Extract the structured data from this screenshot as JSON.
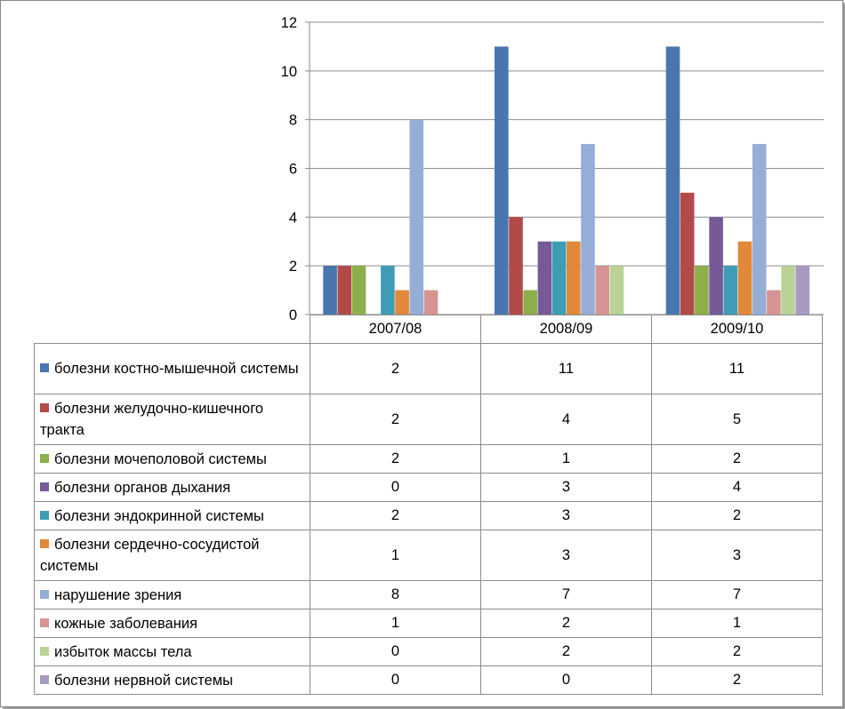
{
  "chart_data": {
    "type": "bar",
    "categories": [
      "2007/08",
      "2008/09",
      "2009/10"
    ],
    "ylim": [
      0,
      12
    ],
    "yticks": [
      0,
      2,
      4,
      6,
      8,
      10,
      12
    ],
    "grid": true,
    "legend": "table-below",
    "series": [
      {
        "name": "болезни костно-мышечной системы",
        "color": "#4A76B0",
        "values": [
          2,
          11,
          11
        ]
      },
      {
        "name": "болезни желудочно-кишечного тракта",
        "color": "#B24B47",
        "values": [
          2,
          4,
          5
        ]
      },
      {
        "name": "болезни мочеполовой системы",
        "color": "#8CAF4A",
        "values": [
          2,
          1,
          2
        ]
      },
      {
        "name": "болезни органов дыхания",
        "color": "#765A98",
        "values": [
          0,
          3,
          4
        ]
      },
      {
        "name": "болезни эндокринной системы",
        "color": "#3E9DB4",
        "values": [
          2,
          3,
          2
        ]
      },
      {
        "name": "болезни сердечно-сосудистой системы",
        "color": "#E1883A",
        "values": [
          1,
          3,
          3
        ]
      },
      {
        "name": "нарушение зрения",
        "color": "#94AED6",
        "values": [
          8,
          7,
          7
        ]
      },
      {
        "name": "кожные заболевания",
        "color": "#D69592",
        "values": [
          1,
          2,
          1
        ]
      },
      {
        "name": "избыток массы тела",
        "color": "#BAD295",
        "values": [
          0,
          2,
          2
        ]
      },
      {
        "name": "болезни нервной системы",
        "color": "#A899C3",
        "values": [
          0,
          0,
          2
        ]
      }
    ]
  }
}
